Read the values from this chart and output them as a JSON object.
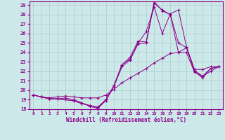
{
  "title": "",
  "xlabel": "Windchill (Refroidissement éolien,°C)",
  "ylabel": "",
  "background_color": "#cde8e8",
  "line_color": "#8b008b",
  "grid_color": "#aacccc",
  "xlim": [
    -0.5,
    23.5
  ],
  "ylim": [
    18,
    29.4
  ],
  "yticks": [
    18,
    19,
    20,
    21,
    22,
    23,
    24,
    25,
    26,
    27,
    28,
    29
  ],
  "xticks": [
    0,
    1,
    2,
    3,
    4,
    5,
    6,
    7,
    8,
    9,
    10,
    11,
    12,
    13,
    14,
    15,
    16,
    17,
    18,
    19,
    20,
    21,
    22,
    23
  ],
  "series": [
    [
      19.5,
      19.3,
      19.1,
      19.1,
      19.2,
      19.0,
      18.7,
      18.3,
      18.1,
      18.9,
      20.4,
      22.5,
      23.2,
      24.9,
      25.0,
      29.2,
      28.5,
      28.0,
      25.0,
      24.5,
      22.1,
      21.5,
      22.3,
      22.5
    ],
    [
      19.5,
      19.3,
      19.1,
      19.1,
      19.0,
      18.9,
      18.6,
      18.4,
      18.2,
      19.0,
      20.5,
      22.7,
      23.3,
      25.0,
      26.2,
      28.8,
      26.0,
      28.1,
      28.5,
      24.6,
      22.2,
      22.2,
      22.5,
      22.5
    ],
    [
      19.5,
      19.3,
      19.1,
      19.1,
      19.0,
      18.9,
      18.6,
      18.4,
      18.2,
      19.0,
      20.5,
      22.7,
      23.5,
      25.2,
      25.1,
      29.4,
      28.4,
      28.0,
      24.0,
      24.5,
      22.0,
      21.3,
      22.3,
      22.5
    ],
    [
      19.5,
      19.3,
      19.2,
      19.3,
      19.4,
      19.3,
      19.2,
      19.2,
      19.2,
      19.5,
      20.1,
      20.8,
      21.3,
      21.8,
      22.3,
      22.9,
      23.4,
      23.9,
      24.0,
      24.0,
      21.9,
      21.5,
      22.0,
      22.5
    ]
  ]
}
